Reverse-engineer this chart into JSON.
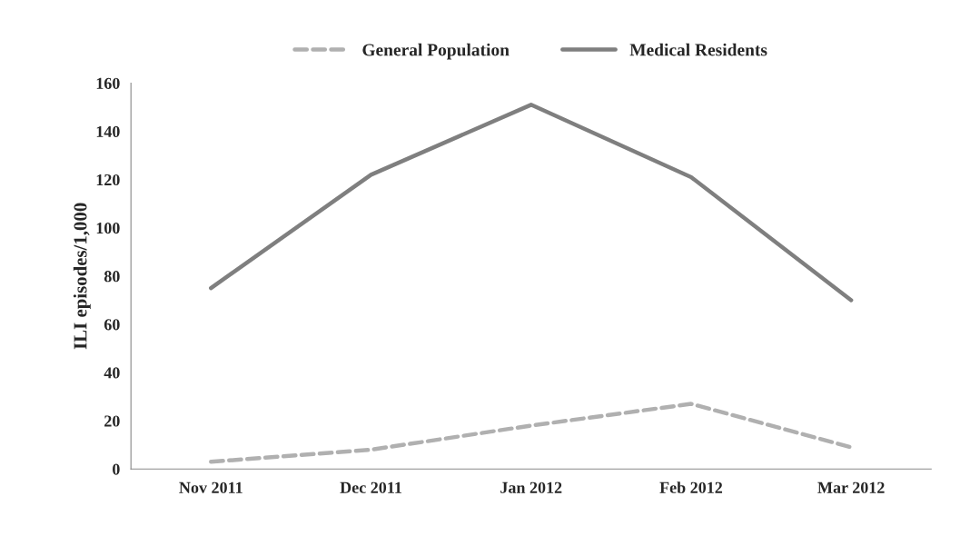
{
  "chart_data": {
    "type": "line",
    "ylabel": "ILI episodes/1,000",
    "categories": [
      "Nov 2011",
      "Dec 2011",
      "Jan 2012",
      "Feb 2012",
      "Mar 2012"
    ],
    "series": [
      {
        "name": "General Population",
        "color": "#b0b0b0",
        "line_style": "dashed",
        "values": [
          3,
          8,
          18,
          27,
          9
        ]
      },
      {
        "name": "Medical Residents",
        "color": "#7f7f7f",
        "line_style": "solid",
        "values": [
          75,
          122,
          151,
          121,
          70
        ]
      }
    ],
    "ylim": [
      0,
      160
    ],
    "yticks": [
      0,
      20,
      40,
      60,
      80,
      100,
      120,
      140,
      160
    ],
    "grid": false,
    "legend": "top",
    "marker": "none"
  }
}
